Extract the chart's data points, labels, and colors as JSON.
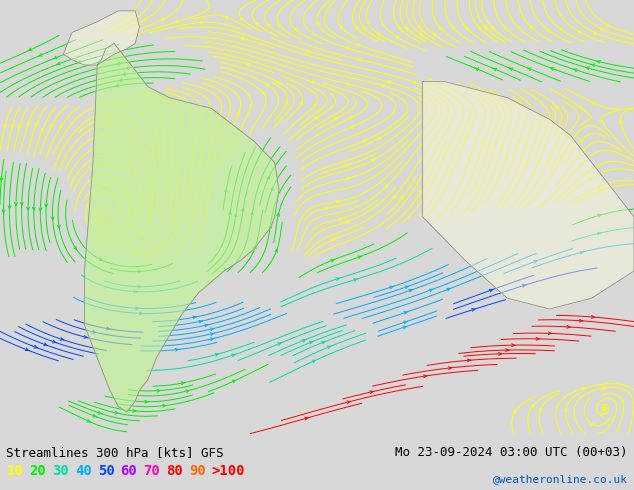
{
  "title_left": "Streamlines 300 hPa [kts] GFS",
  "title_right": "Mo 23-09-2024 03:00 UTC (00+03)",
  "credit": "@weatheronline.co.uk",
  "legend_values": [
    "10",
    "20",
    "30",
    "40",
    "50",
    "60",
    "70",
    "80",
    "90",
    ">100"
  ],
  "legend_colors": [
    "#ffff00",
    "#00ee00",
    "#00ddaa",
    "#00aaff",
    "#0044ff",
    "#aa00ff",
    "#ff00bb",
    "#ff0000",
    "#ff6600",
    "#ff0000"
  ],
  "bg_color": "#d8d8d8",
  "ocean_color": "#e0e0e0",
  "land_color": "#e8e8d8",
  "sa_color": "#c8eaaa",
  "title_fontsize": 9,
  "legend_fontsize": 10,
  "credit_fontsize": 8,
  "speed_bins": [
    0,
    15,
    25,
    35,
    45,
    55,
    65,
    75,
    85,
    95,
    999
  ]
}
